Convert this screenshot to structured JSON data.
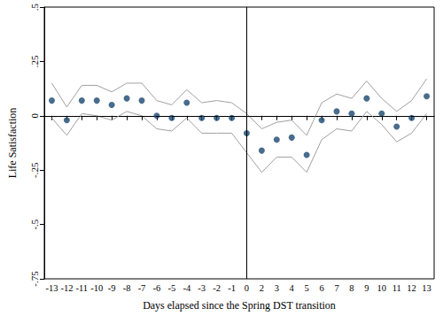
{
  "chart_data": {
    "type": "scatter",
    "xlabel": "Days elapsed since the Spring DST transition",
    "ylabel": "Life Satisfaction",
    "categories": [
      "-13",
      "-12",
      "-11",
      "-10",
      "-9",
      "-8",
      "-7",
      "-6",
      "-5",
      "-4",
      "-3",
      "-2",
      "-1",
      "0",
      "2",
      "3",
      "4",
      "5",
      "6",
      "7",
      "8",
      "9",
      "10",
      "11",
      "12",
      "13"
    ],
    "series": [
      {
        "color": "#1a476f",
        "marker": "circle",
        "values": [
          0.07,
          -0.02,
          0.07,
          0.07,
          0.05,
          0.08,
          0.07,
          0.0,
          -0.01,
          0.06,
          -0.01,
          -0.01,
          -0.01,
          -0.08,
          -0.16,
          -0.11,
          -0.1,
          -0.18,
          -0.02,
          0.02,
          0.01,
          0.08,
          0.01,
          -0.05,
          -0.01,
          0.09
        ],
        "ci_lower": [
          -0.01,
          -0.09,
          0.01,
          0.0,
          -0.02,
          0.02,
          0.0,
          -0.06,
          -0.07,
          -0.01,
          -0.08,
          -0.08,
          -0.08,
          -0.17,
          -0.26,
          -0.19,
          -0.19,
          -0.26,
          -0.11,
          -0.06,
          -0.07,
          0.02,
          -0.04,
          -0.12,
          -0.08,
          0.01
        ],
        "ci_upper": [
          0.15,
          0.04,
          0.14,
          0.14,
          0.11,
          0.15,
          0.15,
          0.07,
          0.05,
          0.12,
          0.06,
          0.07,
          0.06,
          0.01,
          -0.06,
          -0.03,
          -0.02,
          -0.09,
          0.06,
          0.1,
          0.08,
          0.16,
          0.08,
          0.02,
          0.07,
          0.17
        ],
        "ci_color": "#a0a0a0"
      }
    ],
    "hline": 0,
    "vline": "0",
    "ylim": [
      -0.75,
      0.5
    ],
    "yticks": [
      {
        "value": -0.75,
        "label": "-.75"
      },
      {
        "value": -0.5,
        "label": "-.5"
      },
      {
        "value": -0.25,
        "label": "-.25"
      },
      0,
      {
        "value": 0.25,
        "label": ".25"
      },
      {
        "value": 0.5,
        "label": ".5"
      }
    ],
    "grid": false
  }
}
